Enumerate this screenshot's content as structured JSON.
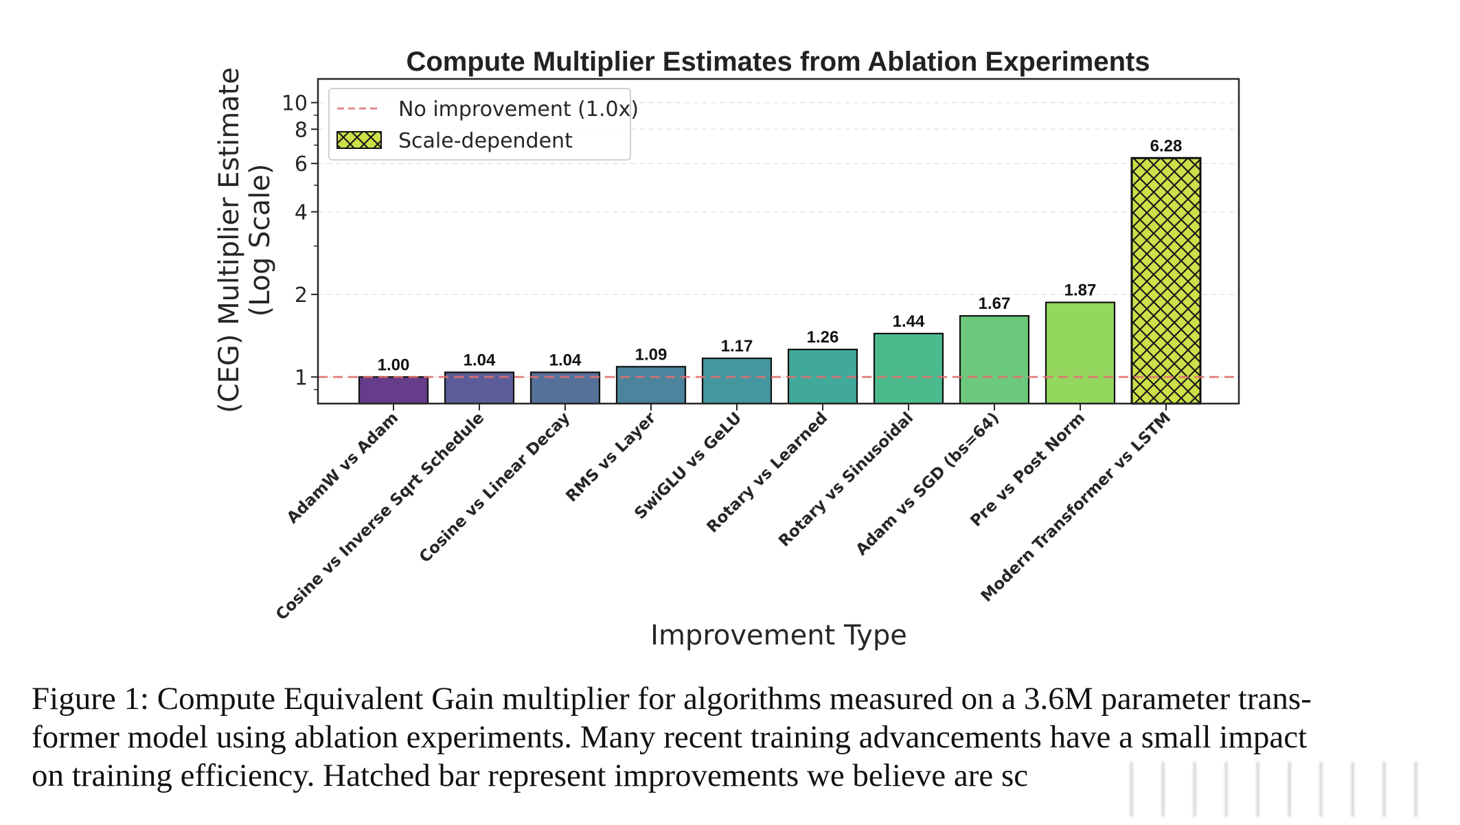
{
  "chart_data": {
    "type": "bar",
    "title": "Compute Multiplier Estimates from Ablation Experiments",
    "xlabel": "Improvement Type",
    "ylabel_lines": [
      "(CEG) Multiplier Estimate",
      "(Log Scale)"
    ],
    "yscale": "log",
    "ylim": [
      0.8,
      12.2
    ],
    "yticks": [
      1,
      2,
      4,
      6,
      8,
      10
    ],
    "ytick_labels": [
      "1",
      "2",
      "4",
      "6",
      "8",
      "10"
    ],
    "grid": "horizontal dashed (light)",
    "categories": [
      "AdamW vs Adam",
      "Cosine vs Inverse Sqrt Schedule",
      "Cosine vs Linear Decay",
      "RMS vs Layer",
      "SwiGLU vs GeLU",
      "Rotary vs Learned",
      "Rotary vs Sinusoidal",
      "Adam vs SGD (bs=64)",
      "Pre vs Post Norm",
      "Modern Transformer vs LSTM"
    ],
    "values": [
      1.0,
      1.04,
      1.04,
      1.09,
      1.17,
      1.26,
      1.44,
      1.67,
      1.87,
      6.28
    ],
    "value_labels": [
      "1.00",
      "1.04",
      "1.04",
      "1.09",
      "1.17",
      "1.26",
      "1.44",
      "1.67",
      "1.87",
      "6.28"
    ],
    "bar_colors": [
      "#663d8a",
      "#5c5d98",
      "#557199",
      "#4b849c",
      "#44979f",
      "#41a99a",
      "#4bbb8d",
      "#6cc87a",
      "#93d75f",
      "#cde04a"
    ],
    "hatched": [
      false,
      false,
      false,
      false,
      false,
      false,
      false,
      false,
      false,
      true
    ],
    "reference_line": {
      "value": 1.0,
      "label": "No improvement (1.0x)",
      "color": "#e07070",
      "style": "dashed"
    },
    "legend": {
      "position": "upper-left",
      "entries": [
        {
          "label": "No improvement (1.0x)",
          "kind": "dashed-line",
          "color": "#e07070"
        },
        {
          "label": "Scale-dependent",
          "kind": "hatched-patch",
          "color": "#cde04a"
        }
      ]
    }
  },
  "caption": {
    "lines": [
      "Figure 1: Compute Equivalent Gain multiplier for algorithms measured on a 3.6M parameter trans-",
      "former model using ablation experiments. Many recent training advancements have a small impact",
      "on training efficiency. Hatched bar represent improvements we believe are sc"
    ]
  }
}
